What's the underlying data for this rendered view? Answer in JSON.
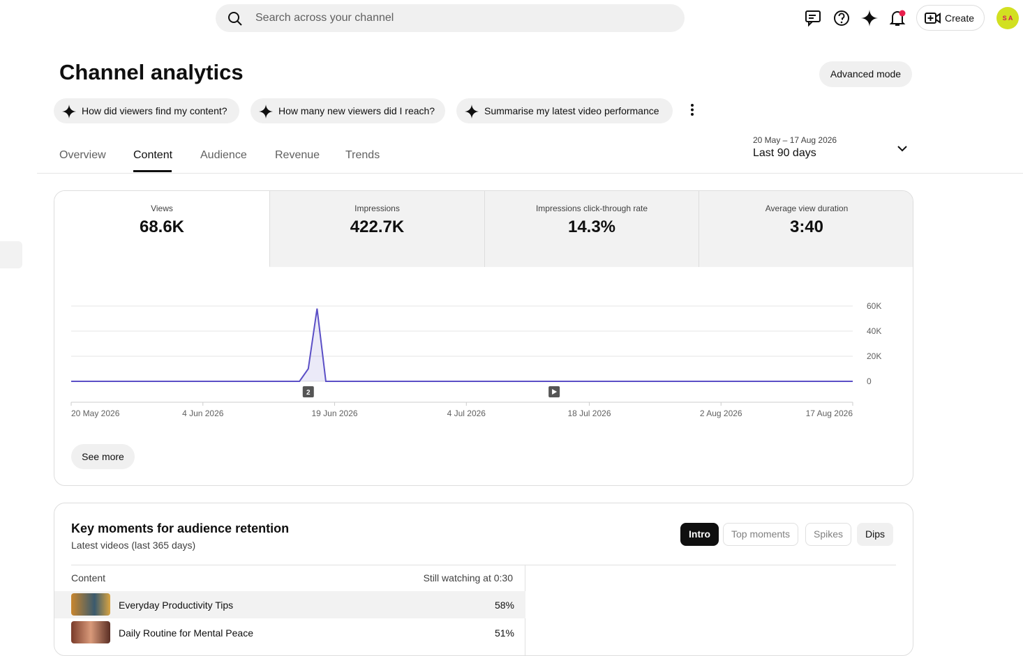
{
  "header": {
    "search_placeholder": "Search across your channel",
    "create": "Create",
    "avatar": "S A"
  },
  "title": "Channel analytics",
  "advanced_mode": "Advanced mode",
  "suggestions": [
    "How did viewers find my content?",
    "How many new viewers did I reach?",
    "Summarise my latest video performance"
  ],
  "tabs": [
    "Overview",
    "Content",
    "Audience",
    "Revenue",
    "Trends"
  ],
  "date_range": {
    "dates": "20 May – 17 Aug 2026",
    "label": "Last 90 days"
  },
  "metrics": [
    {
      "label": "Views",
      "value": "68.6K"
    },
    {
      "label": "Impressions",
      "value": "422.7K"
    },
    {
      "label": "Impressions click-through rate",
      "value": "14.3%"
    },
    {
      "label": "Average view duration",
      "value": "3:40"
    }
  ],
  "chart_data": {
    "type": "line",
    "x": [
      "2026-05-20",
      "2026-06-15",
      "2026-06-16",
      "2026-06-17",
      "2026-06-18",
      "2026-08-17"
    ],
    "values": [
      0,
      0,
      10000,
      58000,
      0,
      0
    ],
    "color": "#5b4fc6",
    "xlim": [
      "2026-05-20",
      "2026-08-17"
    ],
    "xticks": [
      {
        "value": "2026-05-20",
        "label": "20 May 2026"
      },
      {
        "value": "2026-06-04",
        "label": "4 Jun 2026"
      },
      {
        "value": "2026-06-19",
        "label": "19 Jun 2026"
      },
      {
        "value": "2026-07-04",
        "label": "4 Jul 2026"
      },
      {
        "value": "2026-07-18",
        "label": "18 Jul 2026"
      },
      {
        "value": "2026-08-02",
        "label": "2 Aug 2026"
      },
      {
        "value": "2026-08-17",
        "label": "17 Aug 2026"
      }
    ],
    "ylim": [
      0,
      60000
    ],
    "yticks": [
      {
        "value": 0,
        "label": "0"
      },
      {
        "value": 20000,
        "label": "20K"
      },
      {
        "value": 40000,
        "label": "40K"
      },
      {
        "value": 60000,
        "label": "60K"
      }
    ],
    "grid": true,
    "annotations": [
      {
        "x": "2026-06-16",
        "label": "2"
      },
      {
        "x": "2026-07-14"
      }
    ]
  },
  "see_more": "See more",
  "retention": {
    "title": "Key moments for audience retention",
    "subtitle": "Latest videos (last 365 days)",
    "filters": [
      "Intro",
      "Top moments",
      "Spikes",
      "Dips"
    ],
    "columns": [
      "Content",
      "Still watching at 0:30"
    ],
    "rows": [
      [
        "Everyday Productivity Tips",
        "58%"
      ],
      [
        "Daily Routine for Mental Peace",
        "51%"
      ]
    ]
  }
}
